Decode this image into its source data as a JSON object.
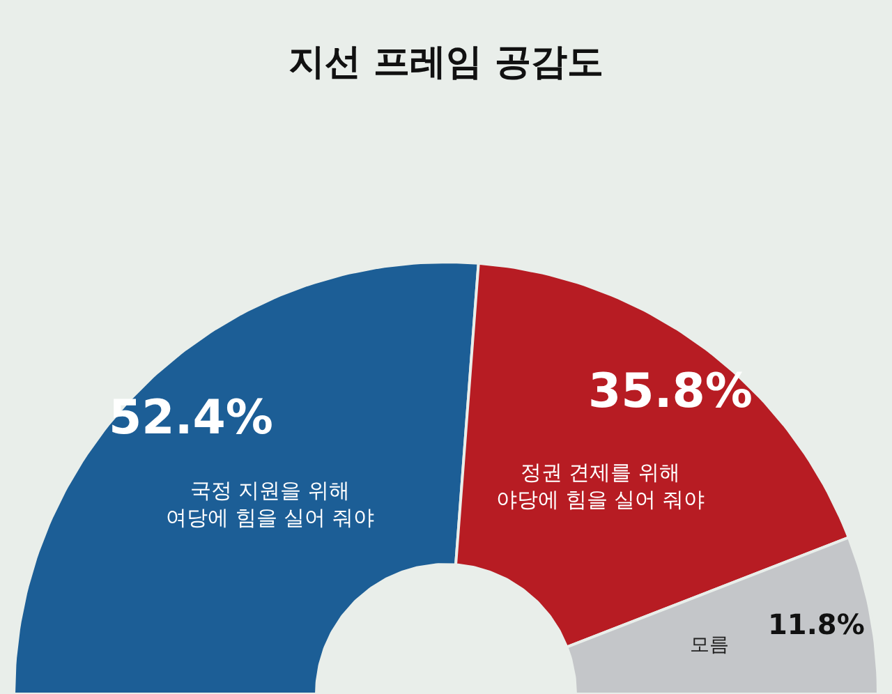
{
  "chart_data": {
    "type": "donut",
    "title": "지선 프레임 공감도",
    "categories": [
      "국정 지원을 위해\n여당에 힘을 실어 줘야",
      "정권 견제를 위해\n야당에 힘을 실어 줘야",
      "모름"
    ],
    "values": [
      52.4,
      35.8,
      11.8
    ],
    "value_labels": [
      "52.4%",
      "35.8%",
      "11.8%"
    ],
    "colors": [
      "#1c5e96",
      "#b71c23",
      "#c4c6c9"
    ],
    "legend": false
  }
}
